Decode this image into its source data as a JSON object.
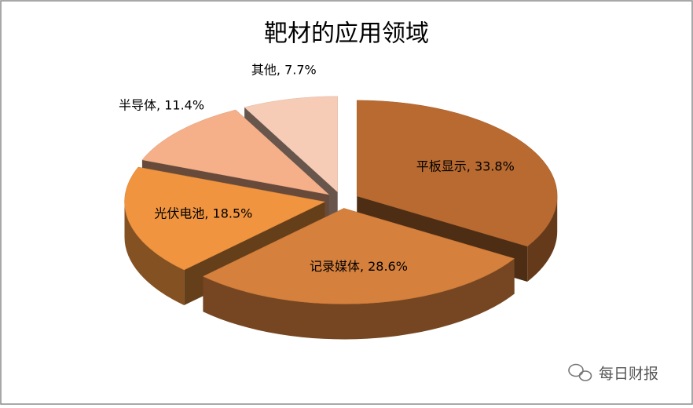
{
  "chart_data": {
    "type": "pie3d",
    "title": "靶材的应用领域",
    "values": [
      33.8,
      28.6,
      18.5,
      11.4,
      7.7
    ],
    "value_labels": [
      "平板显示, 33.8%",
      "记录媒体, 28.6%",
      "光伏电池, 18.5%",
      "半导体, 11.4%",
      "其他, 7.7%"
    ],
    "colors": [
      "#b86a30",
      "#d5803c",
      "#f0943f",
      "#f5b08a",
      "#f7ccb6"
    ]
  },
  "watermark": "每日财报"
}
